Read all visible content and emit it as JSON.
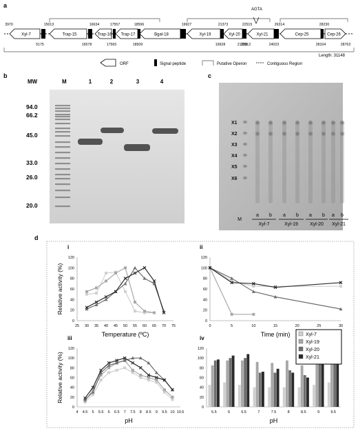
{
  "panel_labels": {
    "a": "a",
    "b": "b",
    "c": "c",
    "d": "d"
  },
  "panel_a": {
    "agta": "AGTA",
    "genes": [
      {
        "name": "Xyl-7",
        "start": "3970",
        "end": "5175"
      },
      {
        "name": "Trap-15",
        "start": "15013",
        "end": "16578"
      },
      {
        "name": "Trap-16",
        "start": "16634",
        "end": "17565"
      },
      {
        "name": "Trap-17",
        "start": "17557",
        "end": "18509"
      },
      {
        "name": "Bgal-18",
        "start": "18596",
        "end": ""
      },
      {
        "name": "Xyl-19",
        "start": "19927",
        "end": "19928"
      },
      {
        "name": "Xyl-20",
        "start": "21373",
        "end": "21358"
      },
      {
        "name": "Xyl-21",
        "start": "22515",
        "end": "24023"
      },
      {
        "name": "Cep-25",
        "start": "26314",
        "end": "28104"
      },
      {
        "name": "Cep-26",
        "start": "28230",
        "end": "28763"
      }
    ],
    "extra_numbers": [
      "22512"
    ],
    "length_label": "Length: 31148",
    "legend": {
      "orf": "ORF",
      "signal": "Signal peptide",
      "operon": "Putative Operon",
      "contig": "Contiguous Region"
    }
  },
  "panel_b": {
    "mw_title": "MW",
    "marker_title": "M",
    "mw_labels": [
      "94.0",
      "66.2",
      "45.0",
      "33.0",
      "26.0",
      "20.0"
    ],
    "lanes": [
      "1",
      "2",
      "3",
      "4"
    ]
  },
  "panel_c": {
    "x_labels": [
      "X1",
      "X2",
      "X3",
      "X4",
      "X5",
      "X6"
    ],
    "lane_letters": [
      "a",
      "b",
      "a",
      "b",
      "a",
      "b",
      "a",
      "b"
    ],
    "marker": "M",
    "groups": [
      "Xyl-7",
      "Xyl-19",
      "Xyl-20",
      "Xyl-21"
    ]
  },
  "panel_d": {
    "sub_labels": [
      "i",
      "ii",
      "iii",
      "iv"
    ],
    "legend": [
      "Xyl-7",
      "Xyl-19",
      "Xyl-20",
      "Xyl-21"
    ],
    "colors": {
      "Xyl-7": "#d0d0d0",
      "Xyl-19": "#a8a8a8",
      "Xyl-20": "#6e6e6e",
      "Xyl-21": "#2a2a2a"
    }
  },
  "chart_data": [
    {
      "id": "d-i",
      "type": "line",
      "xlabel": "Temperature (ºC)",
      "ylabel": "Relative activity (%)",
      "x": [
        30,
        35,
        40,
        45,
        50,
        55,
        60,
        65,
        70
      ],
      "xlim": [
        25,
        75
      ],
      "ylim": [
        0,
        120
      ],
      "xticks": [
        "25",
        "30",
        "35",
        "40",
        "45",
        "50",
        "55",
        "60",
        "65",
        "70",
        "75"
      ],
      "yticks": [
        "0",
        "20",
        "40",
        "60",
        "80",
        "100",
        "120"
      ],
      "series": [
        {
          "name": "Xyl-7",
          "values": [
            50,
            52,
            90,
            92,
            55,
            18,
            15,
            15,
            null
          ]
        },
        {
          "name": "Xyl-19",
          "values": [
            55,
            62,
            75,
            90,
            100,
            35,
            18,
            15,
            null
          ]
        },
        {
          "name": "Xyl-20",
          "values": [
            22,
            30,
            40,
            55,
            70,
            100,
            80,
            70,
            18
          ]
        },
        {
          "name": "Xyl-21",
          "values": [
            25,
            35,
            45,
            55,
            80,
            90,
            100,
            75,
            15
          ]
        }
      ]
    },
    {
      "id": "d-ii",
      "type": "line",
      "xlabel": "Time (min)",
      "ylabel": "",
      "x": [
        0,
        5,
        10,
        15,
        30
      ],
      "xlim": [
        0,
        30
      ],
      "ylim": [
        0,
        120
      ],
      "xticks": [
        "0",
        "5",
        "10",
        "15",
        "20",
        "25",
        "30"
      ],
      "yticks": [
        "0",
        "20",
        "40",
        "60",
        "80",
        "100",
        "120"
      ],
      "series": [
        {
          "name": "Xyl-7",
          "values": [
            100,
            75,
            65,
            65,
            65
          ]
        },
        {
          "name": "Xyl-19",
          "values": [
            100,
            12,
            12,
            null,
            null
          ]
        },
        {
          "name": "Xyl-20",
          "values": [
            100,
            80,
            55,
            45,
            22
          ]
        },
        {
          "name": "Xyl-21",
          "values": [
            100,
            72,
            70,
            63,
            72
          ]
        }
      ]
    },
    {
      "id": "d-iii",
      "type": "line",
      "xlabel": "pH",
      "ylabel": "Relative activity (%)",
      "x": [
        4.5,
        5,
        5.5,
        6,
        6.5,
        7,
        7.5,
        8,
        8.5,
        9,
        9.5,
        10
      ],
      "xlim": [
        4,
        10.5
      ],
      "ylim": [
        0,
        120
      ],
      "xticks": [
        "4",
        "4.5",
        "5",
        "5.5",
        "6",
        "6.5",
        "7",
        "7.5",
        "8",
        "8.5",
        "9",
        "9.5",
        "10",
        "10.5"
      ],
      "yticks": [
        "0",
        "20",
        "40",
        "60",
        "80",
        "100",
        "120"
      ],
      "series": [
        {
          "name": "Xyl-7",
          "values": [
            10,
            25,
            55,
            70,
            75,
            80,
            70,
            60,
            55,
            50,
            30,
            15
          ]
        },
        {
          "name": "Xyl-19",
          "values": [
            12,
            35,
            65,
            80,
            90,
            95,
            75,
            65,
            60,
            55,
            35,
            20
          ]
        },
        {
          "name": "Xyl-20",
          "values": [
            15,
            30,
            70,
            85,
            90,
            95,
            100,
            100,
            90,
            70,
            55,
            35
          ]
        },
        {
          "name": "Xyl-21",
          "values": [
            18,
            40,
            75,
            90,
            95,
            100,
            90,
            80,
            65,
            60,
            55,
            35
          ]
        }
      ]
    },
    {
      "id": "d-iv",
      "type": "bar",
      "xlabel": "pH",
      "ylabel": "",
      "categories": [
        "5.5",
        "6",
        "6.5",
        "7",
        "7.5",
        "8",
        "8.5",
        "9",
        "9.5"
      ],
      "ylim": [
        0,
        120
      ],
      "yticks": [
        "0",
        "20",
        "40",
        "60",
        "80",
        "100",
        "120"
      ],
      "series": [
        {
          "name": "Xyl-7",
          "values": [
            45,
            50,
            45,
            40,
            40,
            40,
            40,
            45,
            50
          ]
        },
        {
          "name": "Xyl-19",
          "values": [
            85,
            95,
            95,
            92,
            90,
            95,
            85,
            90,
            90
          ]
        },
        {
          "name": "Xyl-20",
          "values": [
            95,
            100,
            100,
            70,
            70,
            75,
            65,
            95,
            95
          ]
        },
        {
          "name": "Xyl-21",
          "values": [
            97,
            105,
            108,
            72,
            78,
            70,
            60,
            93,
            95
          ]
        }
      ]
    }
  ]
}
